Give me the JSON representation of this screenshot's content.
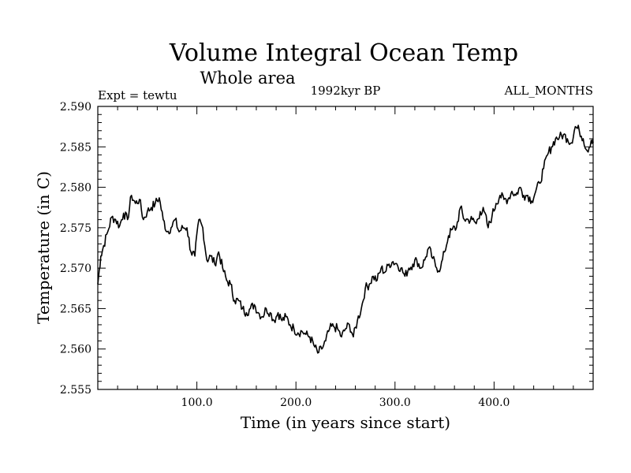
{
  "chart_data": {
    "type": "line",
    "title": "Volume Integral Ocean Temp",
    "subtitle": "Whole area",
    "experiment": "Expt = tewtu",
    "period": "1992kyr BP",
    "months": "ALL_MONTHS",
    "xlabel": "Time (in years since start)",
    "ylabel": "Temperature (in C)",
    "xlim": [
      0,
      500
    ],
    "ylim": [
      2.555,
      2.59
    ],
    "xticks": [
      100,
      200,
      300,
      400
    ],
    "xtick_labels": [
      "100.0",
      "200.0",
      "300.0",
      "400.0"
    ],
    "yticks": [
      2.555,
      2.56,
      2.565,
      2.57,
      2.575,
      2.58,
      2.585,
      2.59
    ],
    "ytick_labels": [
      "2.555",
      "2.560",
      "2.565",
      "2.570",
      "2.575",
      "2.580",
      "2.585",
      "2.590"
    ],
    "grid": false,
    "series": [
      {
        "name": "tewtu",
        "x": [
          0,
          3,
          6,
          10,
          14,
          18,
          22,
          26,
          30,
          34,
          38,
          42,
          46,
          50,
          54,
          58,
          62,
          66,
          70,
          74,
          78,
          82,
          86,
          90,
          94,
          98,
          102,
          106,
          110,
          114,
          118,
          122,
          126,
          130,
          134,
          138,
          142,
          146,
          150,
          154,
          158,
          162,
          166,
          170,
          174,
          178,
          182,
          186,
          190,
          194,
          198,
          202,
          206,
          210,
          214,
          218,
          222,
          226,
          230,
          234,
          238,
          242,
          246,
          250,
          254,
          258,
          262,
          266,
          270,
          274,
          278,
          282,
          286,
          290,
          294,
          298,
          302,
          306,
          310,
          314,
          318,
          322,
          326,
          330,
          334,
          338,
          342,
          346,
          350,
          354,
          358,
          362,
          366,
          370,
          374,
          378,
          382,
          386,
          390,
          394,
          398,
          402,
          406,
          410,
          414,
          418,
          422,
          426,
          430,
          434,
          438,
          442,
          446,
          450,
          454,
          458,
          462,
          466,
          470,
          474,
          478,
          482,
          486,
          490,
          494,
          498,
          500
        ],
        "y": [
          2.568,
          2.5715,
          2.5728,
          2.5745,
          2.5763,
          2.576,
          2.5752,
          2.5768,
          2.576,
          2.579,
          2.578,
          2.5785,
          2.576,
          2.577,
          2.5775,
          2.578,
          2.5787,
          2.576,
          2.5745,
          2.575,
          2.576,
          2.5745,
          2.575,
          2.575,
          2.572,
          2.5715,
          2.576,
          2.575,
          2.571,
          2.5715,
          2.5705,
          2.572,
          2.57,
          2.5685,
          2.568,
          2.566,
          2.566,
          2.565,
          2.5645,
          2.565,
          2.5655,
          2.5645,
          2.564,
          2.565,
          2.5645,
          2.5635,
          2.5645,
          2.5635,
          2.564,
          2.563,
          2.5625,
          2.562,
          2.5622,
          2.5618,
          2.5615,
          2.5605,
          2.5595,
          2.56,
          2.561,
          2.5625,
          2.5628,
          2.5625,
          2.5615,
          2.5625,
          2.563,
          2.5615,
          2.5635,
          2.565,
          2.5675,
          2.568,
          2.569,
          2.5685,
          2.57,
          2.5695,
          2.5705,
          2.5708,
          2.5705,
          2.57,
          2.569,
          2.57,
          2.5705,
          2.571,
          2.57,
          2.571,
          2.5725,
          2.5712,
          2.57,
          2.57,
          2.572,
          2.574,
          2.5748,
          2.575,
          2.5775,
          2.576,
          2.576,
          2.576,
          2.5755,
          2.577,
          2.577,
          2.575,
          2.5765,
          2.578,
          2.579,
          2.5785,
          2.5785,
          2.5795,
          2.579,
          2.58,
          2.579,
          2.579,
          2.5783,
          2.5795,
          2.5805,
          2.5823,
          2.584,
          2.585,
          2.586,
          2.5862,
          2.5865,
          2.586,
          2.5855,
          2.5875,
          2.587,
          2.586,
          2.5845,
          2.5858,
          2.5855
        ]
      }
    ]
  }
}
